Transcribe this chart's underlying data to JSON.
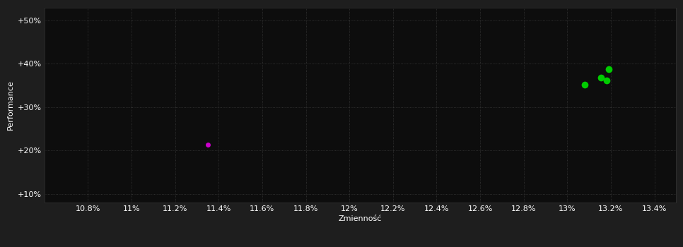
{
  "background_color": "#1e1e1e",
  "plot_bg_color": "#0d0d0d",
  "xlabel": "Zmienność",
  "ylabel": "Performance",
  "xlim": [
    10.6,
    13.5
  ],
  "ylim": [
    8,
    53
  ],
  "xticks": [
    10.8,
    11.0,
    11.2,
    11.4,
    11.6,
    11.8,
    12.0,
    12.2,
    12.4,
    12.6,
    12.8,
    13.0,
    13.2,
    13.4
  ],
  "yticks": [
    10,
    20,
    30,
    40,
    50
  ],
  "ytick_labels": [
    "+10%",
    "+20%",
    "+30%",
    "+40%",
    "+50%"
  ],
  "points_green": [
    [
      13.08,
      35.2
    ],
    [
      13.155,
      36.8
    ],
    [
      13.18,
      36.1
    ],
    [
      13.19,
      38.7
    ]
  ],
  "point_magenta": [
    11.35,
    21.3
  ],
  "green_color": "#00cc00",
  "magenta_color": "#cc00cc",
  "text_color": "#ffffff",
  "tick_color": "#ffffff",
  "grid_color": "#3a3a3a",
  "marker_size_green": 7,
  "marker_size_magenta": 5,
  "label_fontsize": 8,
  "tick_fontsize": 8
}
